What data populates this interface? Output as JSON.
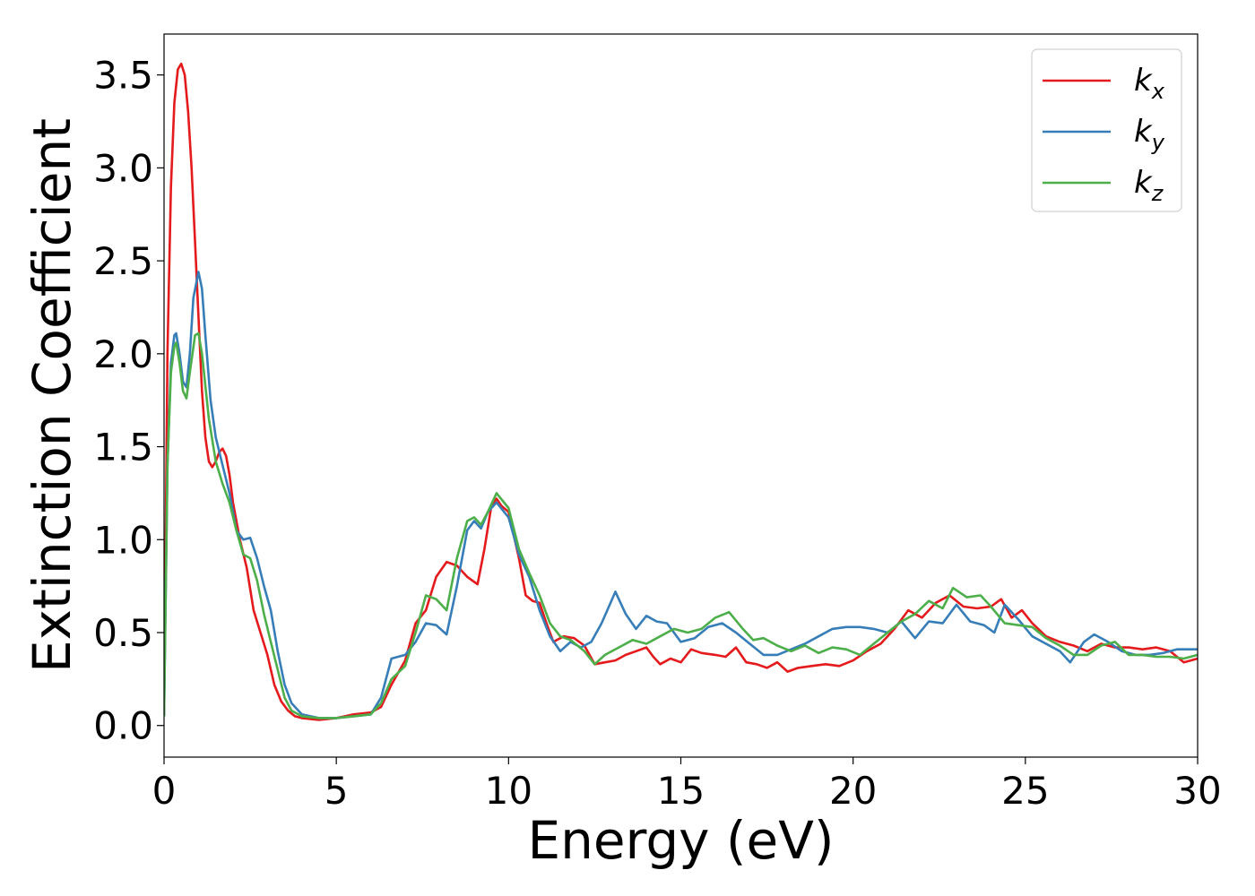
{
  "chart_data": {
    "type": "line",
    "xlabel": "Energy (eV)",
    "ylabel": "Extinction Coefficient",
    "xlim": [
      0,
      30
    ],
    "ylim": [
      -0.17,
      3.72
    ],
    "x_ticks": [
      "0",
      "5",
      "10",
      "15",
      "20",
      "25",
      "30"
    ],
    "y_ticks": [
      "0.0",
      "0.5",
      "1.0",
      "1.5",
      "2.0",
      "2.5",
      "3.0",
      "3.5"
    ],
    "grid": false,
    "legend_position": "top-right",
    "series": [
      {
        "name": "k",
        "subscript": "x",
        "color": "#e41a1c",
        "points": [
          [
            0,
            0.05
          ],
          [
            0.1,
            2.0
          ],
          [
            0.2,
            2.9
          ],
          [
            0.3,
            3.35
          ],
          [
            0.4,
            3.53
          ],
          [
            0.5,
            3.56
          ],
          [
            0.6,
            3.5
          ],
          [
            0.7,
            3.3
          ],
          [
            0.8,
            3.0
          ],
          [
            0.9,
            2.6
          ],
          [
            1.0,
            2.2
          ],
          [
            1.1,
            1.8
          ],
          [
            1.2,
            1.55
          ],
          [
            1.3,
            1.42
          ],
          [
            1.4,
            1.39
          ],
          [
            1.5,
            1.42
          ],
          [
            1.6,
            1.47
          ],
          [
            1.7,
            1.49
          ],
          [
            1.8,
            1.45
          ],
          [
            1.9,
            1.35
          ],
          [
            2.0,
            1.2
          ],
          [
            2.2,
            1.0
          ],
          [
            2.4,
            0.85
          ],
          [
            2.6,
            0.62
          ],
          [
            2.8,
            0.5
          ],
          [
            3.0,
            0.38
          ],
          [
            3.2,
            0.22
          ],
          [
            3.4,
            0.13
          ],
          [
            3.6,
            0.08
          ],
          [
            3.8,
            0.05
          ],
          [
            4.0,
            0.04
          ],
          [
            4.5,
            0.03
          ],
          [
            5.0,
            0.04
          ],
          [
            5.5,
            0.06
          ],
          [
            6.0,
            0.07
          ],
          [
            6.3,
            0.1
          ],
          [
            6.6,
            0.22
          ],
          [
            7.0,
            0.35
          ],
          [
            7.3,
            0.55
          ],
          [
            7.6,
            0.62
          ],
          [
            7.9,
            0.8
          ],
          [
            8.2,
            0.88
          ],
          [
            8.5,
            0.86
          ],
          [
            8.8,
            0.8
          ],
          [
            9.1,
            0.76
          ],
          [
            9.3,
            0.95
          ],
          [
            9.5,
            1.18
          ],
          [
            9.65,
            1.22
          ],
          [
            9.8,
            1.18
          ],
          [
            10.0,
            1.15
          ],
          [
            10.3,
            0.9
          ],
          [
            10.5,
            0.7
          ],
          [
            10.7,
            0.67
          ],
          [
            10.9,
            0.66
          ],
          [
            11.1,
            0.55
          ],
          [
            11.3,
            0.45
          ],
          [
            11.6,
            0.48
          ],
          [
            11.9,
            0.47
          ],
          [
            12.2,
            0.43
          ],
          [
            12.5,
            0.33
          ],
          [
            12.8,
            0.34
          ],
          [
            13.1,
            0.35
          ],
          [
            13.4,
            0.38
          ],
          [
            13.7,
            0.4
          ],
          [
            14.0,
            0.42
          ],
          [
            14.2,
            0.37
          ],
          [
            14.4,
            0.33
          ],
          [
            14.7,
            0.36
          ],
          [
            15.0,
            0.34
          ],
          [
            15.3,
            0.41
          ],
          [
            15.6,
            0.39
          ],
          [
            16.0,
            0.38
          ],
          [
            16.3,
            0.37
          ],
          [
            16.6,
            0.42
          ],
          [
            16.9,
            0.34
          ],
          [
            17.2,
            0.33
          ],
          [
            17.5,
            0.31
          ],
          [
            17.8,
            0.34
          ],
          [
            18.1,
            0.29
          ],
          [
            18.4,
            0.31
          ],
          [
            18.8,
            0.32
          ],
          [
            19.2,
            0.33
          ],
          [
            19.6,
            0.32
          ],
          [
            20.0,
            0.35
          ],
          [
            20.4,
            0.4
          ],
          [
            20.8,
            0.44
          ],
          [
            21.2,
            0.52
          ],
          [
            21.6,
            0.62
          ],
          [
            22.0,
            0.58
          ],
          [
            22.4,
            0.66
          ],
          [
            22.8,
            0.7
          ],
          [
            23.2,
            0.64
          ],
          [
            23.6,
            0.63
          ],
          [
            24.0,
            0.64
          ],
          [
            24.3,
            0.68
          ],
          [
            24.6,
            0.58
          ],
          [
            24.9,
            0.62
          ],
          [
            25.2,
            0.55
          ],
          [
            25.6,
            0.48
          ],
          [
            26.0,
            0.45
          ],
          [
            26.4,
            0.43
          ],
          [
            26.8,
            0.4
          ],
          [
            27.2,
            0.44
          ],
          [
            27.6,
            0.42
          ],
          [
            28.0,
            0.42
          ],
          [
            28.4,
            0.41
          ],
          [
            28.8,
            0.42
          ],
          [
            29.2,
            0.4
          ],
          [
            29.6,
            0.34
          ],
          [
            30.0,
            0.36
          ]
        ]
      },
      {
        "name": "k",
        "subscript": "y",
        "color": "#377eb8",
        "points": [
          [
            0,
            0.05
          ],
          [
            0.1,
            1.4
          ],
          [
            0.2,
            1.95
          ],
          [
            0.3,
            2.1
          ],
          [
            0.35,
            2.11
          ],
          [
            0.45,
            2.0
          ],
          [
            0.55,
            1.85
          ],
          [
            0.65,
            1.82
          ],
          [
            0.75,
            2.0
          ],
          [
            0.85,
            2.3
          ],
          [
            1.0,
            2.44
          ],
          [
            1.1,
            2.35
          ],
          [
            1.2,
            2.1
          ],
          [
            1.35,
            1.75
          ],
          [
            1.5,
            1.55
          ],
          [
            1.7,
            1.4
          ],
          [
            1.9,
            1.25
          ],
          [
            2.1,
            1.05
          ],
          [
            2.3,
            1.0
          ],
          [
            2.5,
            1.01
          ],
          [
            2.7,
            0.9
          ],
          [
            2.9,
            0.75
          ],
          [
            3.1,
            0.62
          ],
          [
            3.3,
            0.4
          ],
          [
            3.5,
            0.22
          ],
          [
            3.7,
            0.12
          ],
          [
            4.0,
            0.06
          ],
          [
            4.5,
            0.04
          ],
          [
            5.0,
            0.04
          ],
          [
            5.5,
            0.05
          ],
          [
            6.0,
            0.06
          ],
          [
            6.3,
            0.15
          ],
          [
            6.6,
            0.36
          ],
          [
            7.0,
            0.38
          ],
          [
            7.3,
            0.45
          ],
          [
            7.6,
            0.55
          ],
          [
            7.9,
            0.54
          ],
          [
            8.2,
            0.49
          ],
          [
            8.5,
            0.75
          ],
          [
            8.8,
            1.05
          ],
          [
            9.0,
            1.1
          ],
          [
            9.2,
            1.06
          ],
          [
            9.4,
            1.15
          ],
          [
            9.65,
            1.2
          ],
          [
            10.0,
            1.12
          ],
          [
            10.3,
            0.92
          ],
          [
            10.6,
            0.8
          ],
          [
            10.9,
            0.62
          ],
          [
            11.2,
            0.48
          ],
          [
            11.5,
            0.4
          ],
          [
            11.8,
            0.45
          ],
          [
            12.1,
            0.42
          ],
          [
            12.4,
            0.45
          ],
          [
            12.7,
            0.55
          ],
          [
            13.1,
            0.72
          ],
          [
            13.4,
            0.6
          ],
          [
            13.7,
            0.52
          ],
          [
            14.0,
            0.59
          ],
          [
            14.3,
            0.56
          ],
          [
            14.6,
            0.55
          ],
          [
            15.0,
            0.45
          ],
          [
            15.4,
            0.47
          ],
          [
            15.8,
            0.53
          ],
          [
            16.2,
            0.55
          ],
          [
            16.6,
            0.5
          ],
          [
            17.0,
            0.44
          ],
          [
            17.4,
            0.38
          ],
          [
            17.8,
            0.38
          ],
          [
            18.2,
            0.41
          ],
          [
            18.6,
            0.44
          ],
          [
            19.0,
            0.48
          ],
          [
            19.4,
            0.52
          ],
          [
            19.8,
            0.53
          ],
          [
            20.2,
            0.53
          ],
          [
            20.6,
            0.52
          ],
          [
            21.0,
            0.5
          ],
          [
            21.4,
            0.56
          ],
          [
            21.8,
            0.47
          ],
          [
            22.2,
            0.56
          ],
          [
            22.6,
            0.55
          ],
          [
            23.0,
            0.65
          ],
          [
            23.4,
            0.56
          ],
          [
            23.8,
            0.54
          ],
          [
            24.1,
            0.5
          ],
          [
            24.4,
            0.65
          ],
          [
            24.8,
            0.57
          ],
          [
            25.2,
            0.48
          ],
          [
            25.6,
            0.44
          ],
          [
            26.0,
            0.4
          ],
          [
            26.3,
            0.34
          ],
          [
            26.7,
            0.45
          ],
          [
            27.0,
            0.49
          ],
          [
            27.4,
            0.45
          ],
          [
            27.8,
            0.4
          ],
          [
            28.2,
            0.38
          ],
          [
            28.6,
            0.38
          ],
          [
            29.0,
            0.39
          ],
          [
            29.4,
            0.41
          ],
          [
            30.0,
            0.41
          ]
        ]
      },
      {
        "name": "k",
        "subscript": "z",
        "color": "#4daf4a",
        "points": [
          [
            0,
            0.05
          ],
          [
            0.1,
            1.4
          ],
          [
            0.2,
            1.9
          ],
          [
            0.3,
            2.04
          ],
          [
            0.35,
            2.06
          ],
          [
            0.45,
            1.95
          ],
          [
            0.55,
            1.8
          ],
          [
            0.65,
            1.76
          ],
          [
            0.75,
            1.9
          ],
          [
            0.9,
            2.1
          ],
          [
            1.0,
            2.11
          ],
          [
            1.1,
            2.0
          ],
          [
            1.3,
            1.65
          ],
          [
            1.5,
            1.42
          ],
          [
            1.7,
            1.3
          ],
          [
            1.9,
            1.2
          ],
          [
            2.1,
            1.05
          ],
          [
            2.3,
            0.92
          ],
          [
            2.5,
            0.9
          ],
          [
            2.7,
            0.78
          ],
          [
            2.9,
            0.6
          ],
          [
            3.1,
            0.45
          ],
          [
            3.3,
            0.3
          ],
          [
            3.5,
            0.15
          ],
          [
            3.7,
            0.08
          ],
          [
            4.0,
            0.05
          ],
          [
            4.5,
            0.04
          ],
          [
            5.0,
            0.04
          ],
          [
            5.5,
            0.05
          ],
          [
            6.0,
            0.06
          ],
          [
            6.3,
            0.12
          ],
          [
            6.6,
            0.25
          ],
          [
            7.0,
            0.32
          ],
          [
            7.3,
            0.5
          ],
          [
            7.6,
            0.7
          ],
          [
            7.9,
            0.68
          ],
          [
            8.2,
            0.62
          ],
          [
            8.5,
            0.9
          ],
          [
            8.8,
            1.1
          ],
          [
            9.0,
            1.12
          ],
          [
            9.2,
            1.08
          ],
          [
            9.4,
            1.15
          ],
          [
            9.65,
            1.25
          ],
          [
            10.0,
            1.17
          ],
          [
            10.3,
            0.95
          ],
          [
            10.6,
            0.82
          ],
          [
            10.9,
            0.7
          ],
          [
            11.2,
            0.55
          ],
          [
            11.5,
            0.48
          ],
          [
            11.8,
            0.46
          ],
          [
            12.2,
            0.4
          ],
          [
            12.5,
            0.33
          ],
          [
            12.8,
            0.38
          ],
          [
            13.2,
            0.42
          ],
          [
            13.6,
            0.46
          ],
          [
            14.0,
            0.44
          ],
          [
            14.4,
            0.48
          ],
          [
            14.8,
            0.52
          ],
          [
            15.2,
            0.5
          ],
          [
            15.6,
            0.52
          ],
          [
            16.0,
            0.58
          ],
          [
            16.4,
            0.61
          ],
          [
            16.8,
            0.52
          ],
          [
            17.1,
            0.46
          ],
          [
            17.4,
            0.47
          ],
          [
            17.8,
            0.43
          ],
          [
            18.2,
            0.4
          ],
          [
            18.6,
            0.43
          ],
          [
            19.0,
            0.39
          ],
          [
            19.4,
            0.42
          ],
          [
            19.8,
            0.41
          ],
          [
            20.2,
            0.38
          ],
          [
            20.6,
            0.44
          ],
          [
            21.0,
            0.5
          ],
          [
            21.4,
            0.56
          ],
          [
            21.8,
            0.6
          ],
          [
            22.2,
            0.67
          ],
          [
            22.6,
            0.63
          ],
          [
            22.9,
            0.74
          ],
          [
            23.3,
            0.69
          ],
          [
            23.7,
            0.7
          ],
          [
            24.0,
            0.64
          ],
          [
            24.4,
            0.55
          ],
          [
            24.8,
            0.54
          ],
          [
            25.2,
            0.53
          ],
          [
            25.6,
            0.47
          ],
          [
            26.0,
            0.43
          ],
          [
            26.4,
            0.38
          ],
          [
            26.8,
            0.38
          ],
          [
            27.2,
            0.43
          ],
          [
            27.6,
            0.45
          ],
          [
            28.0,
            0.38
          ],
          [
            28.4,
            0.38
          ],
          [
            28.8,
            0.37
          ],
          [
            29.2,
            0.37
          ],
          [
            29.6,
            0.36
          ],
          [
            30.0,
            0.38
          ]
        ]
      }
    ]
  }
}
